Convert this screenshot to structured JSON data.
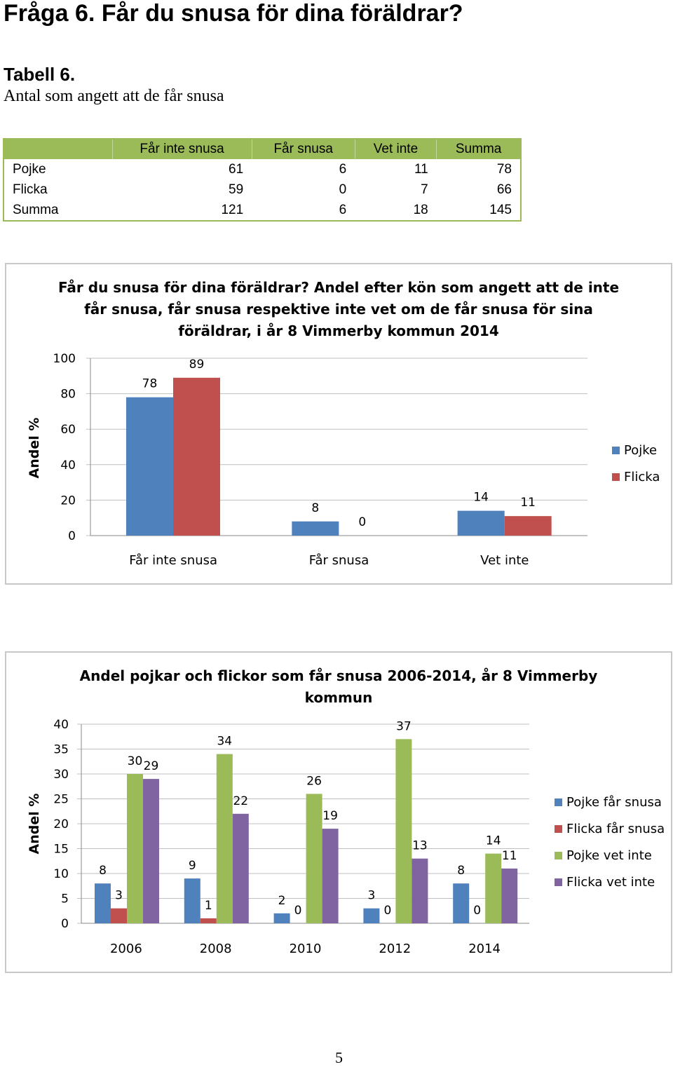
{
  "page": {
    "heading": "Fråga 6. Får du snusa för dina föräldrar?",
    "table_title": "Tabell 6.",
    "table_subtitle": "Antal som angett att de får snusa",
    "page_number": "5"
  },
  "table": {
    "headers": [
      "",
      "Får inte snusa",
      "Får snusa",
      "Vet inte",
      "Summa"
    ],
    "rows": [
      [
        "Pojke",
        "61",
        "6",
        "11",
        "78"
      ],
      [
        "Flicka",
        "59",
        "0",
        "7",
        "66"
      ],
      [
        "Summa",
        "121",
        "6",
        "18",
        "145"
      ]
    ]
  },
  "chart_data": [
    {
      "type": "bar",
      "title_lines": [
        "Får du snusa för dina föräldrar? Andel efter kön som angett att de inte",
        "får snusa, får snusa respektive inte vet om de får snusa för sina",
        "föräldrar, i år 8 Vimmerby kommun 2014"
      ],
      "ylabel": "Andel %",
      "ylim": [
        0,
        100
      ],
      "yticks": [
        0,
        20,
        40,
        60,
        80,
        100
      ],
      "categories": [
        "Får inte snusa",
        "Får snusa",
        "Vet inte"
      ],
      "series": [
        {
          "name": "Pojke",
          "color": "#4f81bd",
          "values": [
            78,
            8,
            14
          ]
        },
        {
          "name": "Flicka",
          "color": "#c0504d",
          "values": [
            89,
            0,
            11
          ]
        }
      ],
      "legend": "right",
      "grid": true
    },
    {
      "type": "bar",
      "title_lines": [
        "Andel pojkar och flickor som får snusa 2006-2014, år 8 Vimmerby",
        "kommun"
      ],
      "ylabel": "Andel %",
      "ylim": [
        0,
        40
      ],
      "yticks": [
        0,
        5,
        10,
        15,
        20,
        25,
        30,
        35,
        40
      ],
      "categories": [
        "2006",
        "2008",
        "2010",
        "2012",
        "2014"
      ],
      "series": [
        {
          "name": "Pojke får snusa",
          "color": "#4f81bd",
          "values": [
            8,
            9,
            2,
            3,
            8
          ]
        },
        {
          "name": "Flicka får snusa",
          "color": "#c0504d",
          "values": [
            3,
            1,
            0,
            0,
            0
          ]
        },
        {
          "name": "Pojke vet inte",
          "color": "#9bbb59",
          "values": [
            30,
            34,
            26,
            37,
            14
          ]
        },
        {
          "name": "Flicka vet inte",
          "color": "#8064a2",
          "values": [
            29,
            22,
            19,
            13,
            11
          ]
        }
      ],
      "legend": "right",
      "grid": true
    }
  ]
}
